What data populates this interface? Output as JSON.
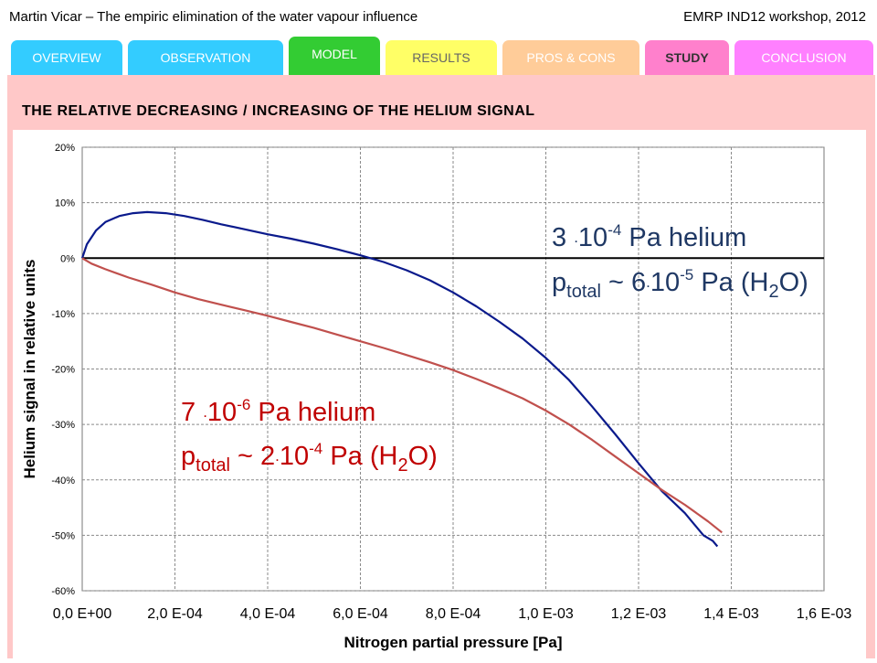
{
  "header": {
    "left": "Martin Vicar – The empiric elimination of the water vapour influence",
    "right": "EMRP IND12 workshop, 2012"
  },
  "tabs": [
    {
      "label": "OVERVIEW"
    },
    {
      "label": "OBSERVATION"
    },
    {
      "label": "MODEL"
    },
    {
      "label": "RESULTS"
    },
    {
      "label": "PROS & CONS"
    },
    {
      "label": "STUDY",
      "active": true
    },
    {
      "label": "CONCLUSION"
    }
  ],
  "slide": {
    "subtitle": "THE  RELATIVE  DECREASING / INCREASING  OF  THE  HELIUM  SIGNAL"
  },
  "colors": {
    "blue_series": "#0a1a8c",
    "red_series": "#c0504d",
    "panel": "#ffc8c8"
  },
  "chart_data": {
    "type": "line",
    "xlabel": "Nitrogen partial pressure [Pa]",
    "ylabel": "Helium signal in relative units",
    "xlim": [
      0,
      0.0016
    ],
    "ylim": [
      -60,
      20
    ],
    "grid": true,
    "x_tick_values": [
      0,
      0.0002,
      0.0004,
      0.0006,
      0.0008,
      0.001,
      0.0012,
      0.0014,
      0.0016
    ],
    "x_tick_labels": [
      "0,0 E+00",
      "2,0 E-04",
      "4,0 E-04",
      "6,0 E-04",
      "8,0 E-04",
      "1,0 E-03",
      "1,2 E-03",
      "1,4 E-03",
      "1,6 E-03"
    ],
    "y_tick_values": [
      20,
      10,
      0,
      -10,
      -20,
      -30,
      -40,
      -50,
      -60
    ],
    "y_tick_labels": [
      "20%",
      "10%",
      "0%",
      "-10%",
      "-20%",
      "-30%",
      "-40%",
      "-50%",
      "-60%"
    ],
    "series": [
      {
        "color": "#0a1a8c",
        "x": [
          0,
          1e-05,
          3e-05,
          5e-05,
          8e-05,
          0.00011,
          0.00014,
          0.00018,
          0.00022,
          0.00026,
          0.0003,
          0.00035,
          0.0004,
          0.00045,
          0.0005,
          0.00055,
          0.0006,
          0.00065,
          0.0007,
          0.00075,
          0.0008,
          0.00085,
          0.0009,
          0.00095,
          0.001,
          0.00105,
          0.0011,
          0.00115,
          0.0012,
          0.00125,
          0.0013,
          0.00132,
          0.00134,
          0.00136,
          0.00137
        ],
        "y": [
          0,
          2.5,
          5,
          6.5,
          7.6,
          8.1,
          8.3,
          8.1,
          7.6,
          6.9,
          6.1,
          5.2,
          4.3,
          3.5,
          2.6,
          1.6,
          0.5,
          -0.7,
          -2.2,
          -4.0,
          -6.2,
          -8.7,
          -11.5,
          -14.5,
          -18.0,
          -22.0,
          -26.8,
          -31.8,
          -37.0,
          -42.0,
          -46.0,
          -48.0,
          -50.0,
          -51.0,
          -52.0
        ]
      },
      {
        "color": "#c0504d",
        "x": [
          0,
          2e-05,
          5e-05,
          0.0001,
          0.00015,
          0.0002,
          0.00025,
          0.0003,
          0.00035,
          0.0004,
          0.00045,
          0.0005,
          0.00055,
          0.0006,
          0.00065,
          0.0007,
          0.00075,
          0.0008,
          0.00085,
          0.0009,
          0.00095,
          0.001,
          0.00105,
          0.0011,
          0.00115,
          0.0012,
          0.00125,
          0.0013,
          0.00135,
          0.00138
        ],
        "y": [
          0,
          -1,
          -2,
          -3.5,
          -4.8,
          -6.2,
          -7.4,
          -8.4,
          -9.4,
          -10.4,
          -11.5,
          -12.6,
          -13.8,
          -15.0,
          -16.2,
          -17.5,
          -18.8,
          -20.2,
          -21.8,
          -23.5,
          -25.3,
          -27.5,
          -30.0,
          -32.8,
          -35.8,
          -38.8,
          -41.8,
          -44.5,
          -47.5,
          -49.5
        ]
      }
    ],
    "annotations": [
      {
        "color": "#1f3864",
        "line1": {
          "pre": "3 ",
          "dot": ".",
          "num": "10",
          "exp": "-4",
          "post": " Pa   helium"
        },
        "line2": {
          "p": "p",
          "sub": "total",
          "mid": " ~ 6",
          "dot": ".",
          "num": "10",
          "exp": "-5",
          "post": " Pa (H",
          "sub2": "2",
          "end": "O)"
        }
      },
      {
        "color": "#c00000",
        "line1": {
          "pre": "7 ",
          "dot": ".",
          "num": "10",
          "exp": "-6",
          "post": " Pa   helium"
        },
        "line2": {
          "p": "p",
          "sub": "total",
          "mid": " ~ 2",
          "dot": ".",
          "num": "10",
          "exp": "-4",
          "post": " Pa (H",
          "sub2": "2",
          "end": "O)"
        }
      }
    ]
  }
}
